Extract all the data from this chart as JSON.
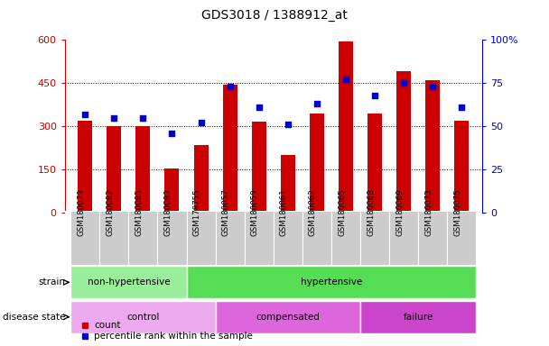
{
  "title": "GDS3018 / 1388912_at",
  "samples": [
    "GSM180079",
    "GSM180082",
    "GSM180085",
    "GSM180089",
    "GSM178755",
    "GSM180057",
    "GSM180059",
    "GSM180061",
    "GSM180062",
    "GSM180065",
    "GSM180068",
    "GSM180069",
    "GSM180073",
    "GSM180075"
  ],
  "counts": [
    320,
    300,
    300,
    155,
    235,
    445,
    315,
    200,
    345,
    595,
    345,
    490,
    460,
    320
  ],
  "percentiles": [
    57,
    55,
    55,
    46,
    52,
    73,
    61,
    51,
    63,
    77,
    68,
    75,
    73,
    61
  ],
  "ylim_left": [
    0,
    600
  ],
  "ylim_right": [
    0,
    100
  ],
  "yticks_left": [
    0,
    150,
    300,
    450,
    600
  ],
  "yticks_right": [
    0,
    25,
    50,
    75,
    100
  ],
  "bar_color": "#cc0000",
  "dot_color": "#0000cc",
  "strain_groups": [
    {
      "label": "non-hypertensive",
      "start": 0,
      "end": 4,
      "color": "#99ee99"
    },
    {
      "label": "hypertensive",
      "start": 4,
      "end": 14,
      "color": "#55dd55"
    }
  ],
  "disease_groups": [
    {
      "label": "control",
      "start": 0,
      "end": 5,
      "color": "#eeaaee"
    },
    {
      "label": "compensated",
      "start": 5,
      "end": 10,
      "color": "#dd66dd"
    },
    {
      "label": "failure",
      "start": 10,
      "end": 14,
      "color": "#cc44cc"
    }
  ],
  "strain_label": "strain",
  "disease_label": "disease state",
  "legend_count_label": "count",
  "legend_pct_label": "percentile rank within the sample",
  "grid_color": "black",
  "bg_color": "#ffffff",
  "bar_width": 0.5,
  "tick_bg": "#cccccc",
  "left_axis_color": "#cc0000",
  "right_axis_color": "#0000cc"
}
